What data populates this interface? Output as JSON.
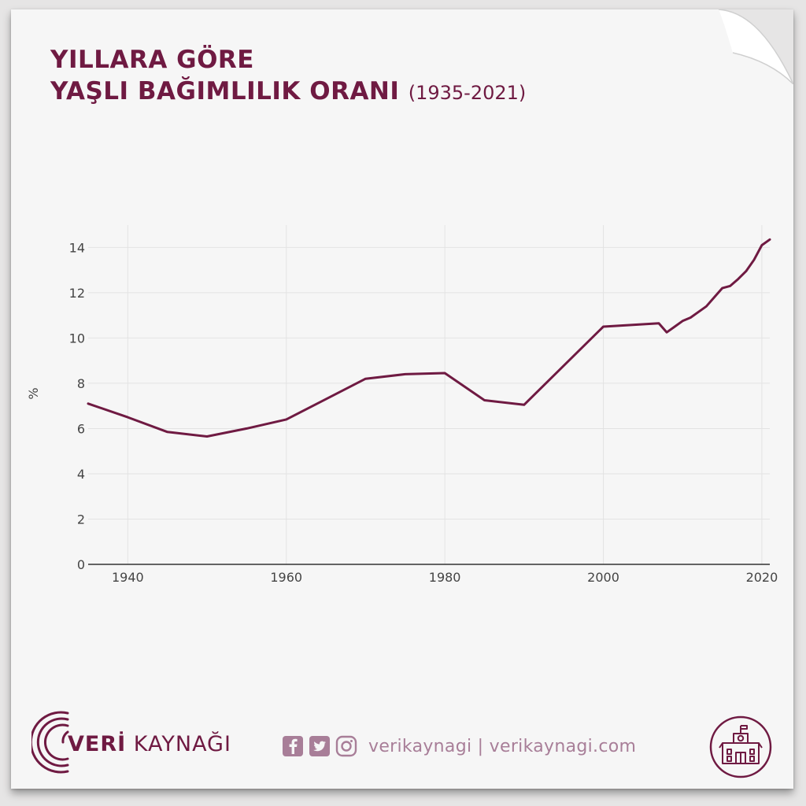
{
  "title_line1": "YILLARA GÖRE",
  "title_line2": "YAŞLI BAĞIMLILIK ORANI",
  "title_years": "(1935-2021)",
  "colors": {
    "accent": "#6f1a42",
    "muted": "#a87e98",
    "grid": "#e3e3e3",
    "axis_text": "#444444"
  },
  "chart_data": {
    "type": "line",
    "ylabel": "%",
    "xlim": [
      1935,
      2021
    ],
    "ylim": [
      0,
      14.5
    ],
    "x_ticks": [
      1940,
      1960,
      1980,
      2000,
      2020
    ],
    "x_tick_labels": [
      "1940",
      "1960",
      "1980",
      "2000",
      "2020"
    ],
    "y_ticks": [
      0,
      2,
      4,
      6,
      8,
      10,
      12,
      14
    ],
    "y_tick_labels": [
      "0",
      "2",
      "4",
      "6",
      "8",
      "10",
      "12",
      "14"
    ],
    "grid": true,
    "series": [
      {
        "color": "#6f1a42",
        "x": [
          1935,
          1940,
          1945,
          1950,
          1955,
          1960,
          1965,
          1970,
          1975,
          1980,
          1985,
          1990,
          2000,
          2007,
          2008,
          2009,
          2010,
          2011,
          2012,
          2013,
          2014,
          2015,
          2016,
          2017,
          2018,
          2019,
          2020,
          2021
        ],
        "y": [
          7.1,
          6.5,
          5.85,
          5.65,
          6.0,
          6.4,
          7.3,
          8.2,
          8.4,
          8.45,
          7.25,
          7.05,
          10.5,
          10.65,
          10.25,
          10.5,
          10.75,
          10.9,
          11.15,
          11.4,
          11.8,
          12.2,
          12.3,
          12.6,
          12.95,
          13.45,
          14.1,
          14.35
        ]
      }
    ]
  },
  "footer": {
    "brand_bold": "VERİ",
    "brand_rest": " KAYNAĞI",
    "social_text": "verikaynagi | verikaynagi.com",
    "facebook_icon": "facebook-icon",
    "twitter_icon": "twitter-icon",
    "instagram_icon": "instagram-icon",
    "school_icon": "school-building-icon"
  }
}
